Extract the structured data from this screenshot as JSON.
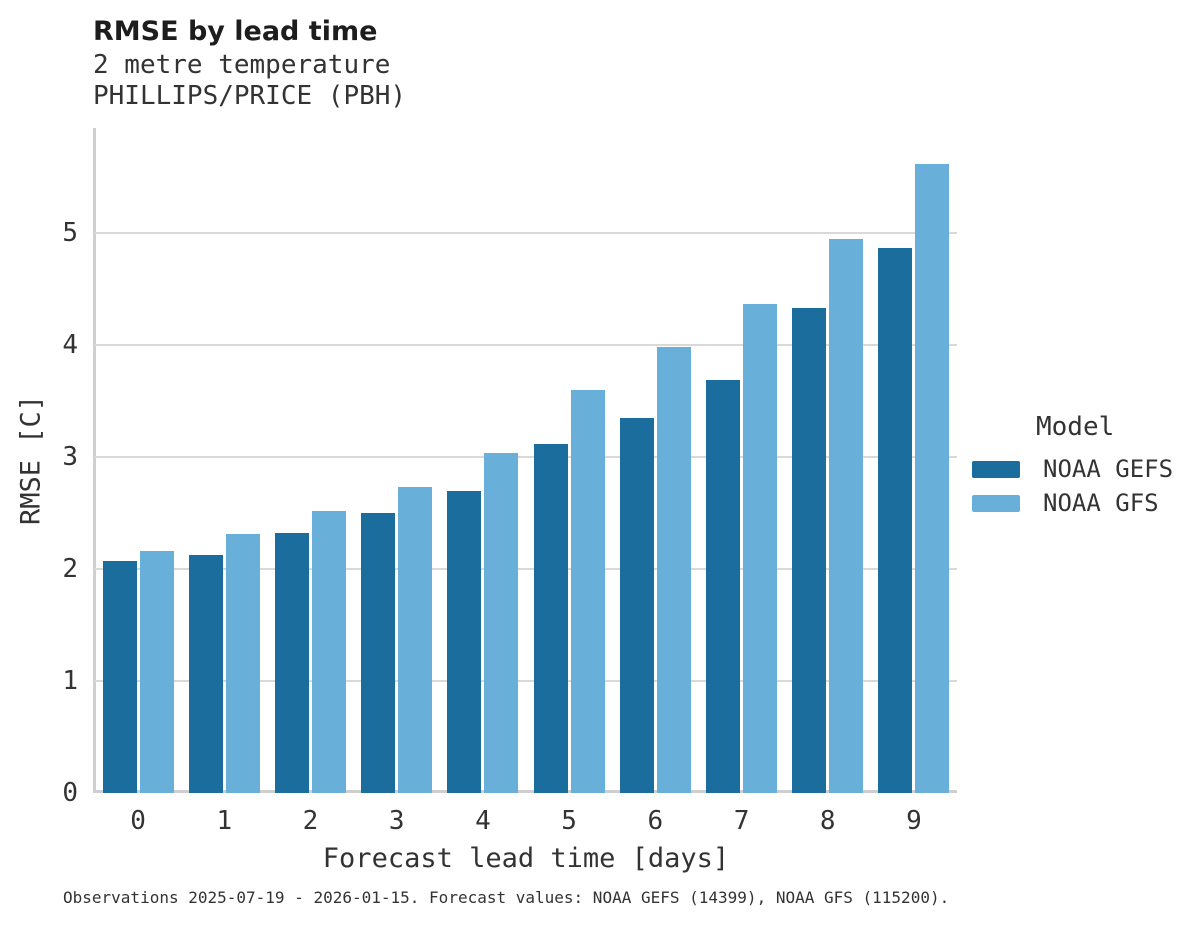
{
  "header": {
    "title": "RMSE by lead time",
    "subtitle_line1": "2 metre temperature",
    "subtitle_line2": "PHILLIPS/PRICE (PBH)"
  },
  "chart_data": {
    "type": "bar",
    "title": "RMSE by lead time",
    "subtitle": [
      "2 metre temperature",
      "PHILLIPS/PRICE (PBH)"
    ],
    "categories": [
      "0",
      "1",
      "2",
      "3",
      "4",
      "5",
      "6",
      "7",
      "8",
      "9"
    ],
    "series": [
      {
        "name": "NOAA GEFS",
        "color": "#1b6d9e",
        "values": [
          2.07,
          2.13,
          2.32,
          2.5,
          2.7,
          3.12,
          3.35,
          3.69,
          4.33,
          4.87
        ]
      },
      {
        "name": "NOAA GFS",
        "color": "#68b0d9",
        "values": [
          2.16,
          2.31,
          2.52,
          2.73,
          3.04,
          3.6,
          3.98,
          4.37,
          4.95,
          5.62
        ]
      }
    ],
    "xlabel": "Forecast lead time [days]",
    "ylabel": "RMSE [C]",
    "ylim": [
      0,
      5.94
    ],
    "yticks": [
      0,
      1,
      2,
      3,
      4,
      5
    ],
    "grid": "horizontal-major",
    "legend_position": "right",
    "legend_title": "Model"
  },
  "footer": {
    "caption": "Observations 2025-07-19 - 2026-01-15. Forecast values: NOAA GEFS (14399), NOAA GFS (115200)."
  },
  "style_colors": {
    "bar_dark_blue": "#1b6d9e",
    "bar_light_blue": "#68b0d9",
    "gridline": "#d9d9d9",
    "axis_line": "#cfcfcf",
    "text": "#333333",
    "title_text": "#1d1d1d",
    "background": "#ffffff"
  }
}
